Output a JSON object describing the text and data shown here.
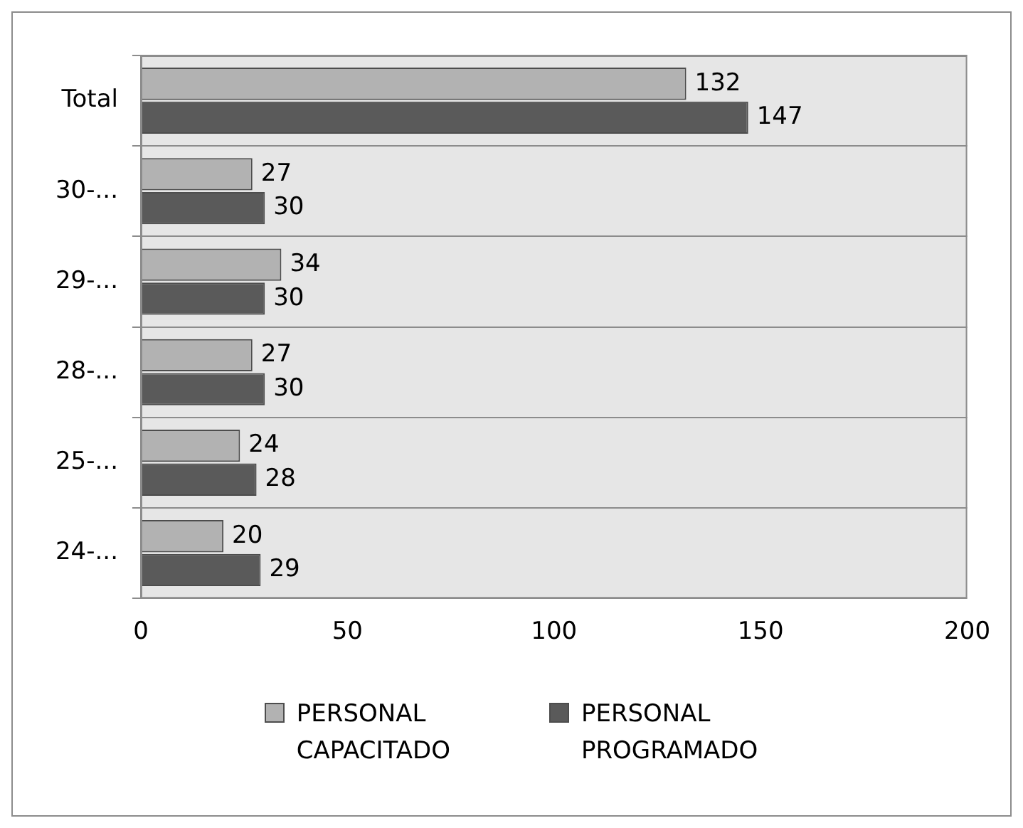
{
  "chart_data": {
    "type": "bar",
    "orientation": "horizontal",
    "categories": [
      "Total",
      "30-...",
      "29-...",
      "28-...",
      "25-...",
      "24-..."
    ],
    "series": [
      {
        "name": "PERSONAL CAPACITADO",
        "color": "#b2b2b2",
        "values": [
          132,
          27,
          34,
          27,
          24,
          20
        ]
      },
      {
        "name": "PERSONAL PROGRAMADO",
        "color": "#5a5a5a",
        "values": [
          147,
          30,
          30,
          30,
          28,
          29
        ]
      }
    ],
    "xlim": [
      0,
      200
    ],
    "xticks": [
      0,
      50,
      100,
      150,
      200
    ],
    "grid": "y",
    "legend": "bottom",
    "data_labels": true
  }
}
